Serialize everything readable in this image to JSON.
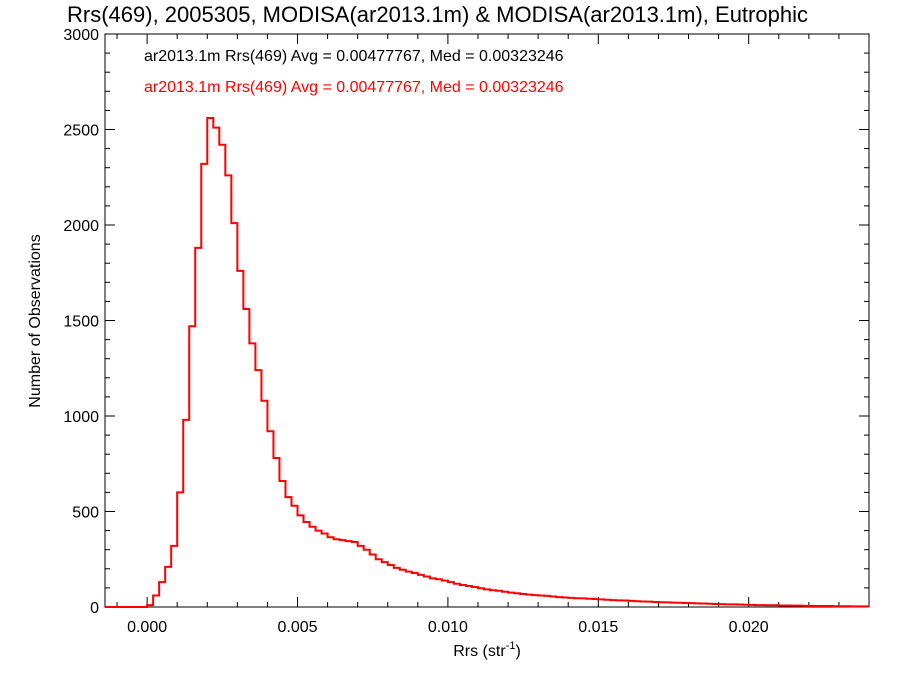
{
  "chart_data": {
    "type": "histogram",
    "title": "Rrs(469), 2005305, MODISA(ar2013.1m) & MODISA(ar2013.1m), Eutrophic",
    "xlabel": "Rrs (str",
    "xlabel_superscript": "-1",
    "xlabel_suffix": ")",
    "ylabel": "Number of Observations",
    "xlim": [
      -0.0014,
      0.024
    ],
    "ylim": [
      0,
      3000
    ],
    "xticks": [
      0.0,
      0.005,
      0.01,
      0.015,
      0.02
    ],
    "xtick_labels": [
      "0.000",
      "0.005",
      "0.010",
      "0.015",
      "0.020"
    ],
    "yticks": [
      0,
      500,
      1000,
      1500,
      2000,
      2500,
      3000
    ],
    "ytick_labels": [
      "0",
      "500",
      "1000",
      "1500",
      "2000",
      "2500",
      "3000"
    ],
    "grid": false,
    "legend_position": "top-left",
    "series": [
      {
        "name": "ar2013.1m Rrs(469) Avg = 0.00477767, Med = 0.00323246",
        "color": "#000000",
        "bins": [
          [
            -0.0014,
            0
          ],
          [
            0.0,
            10
          ],
          [
            0.0002,
            60
          ],
          [
            0.0004,
            130
          ],
          [
            0.0006,
            210
          ],
          [
            0.0008,
            320
          ],
          [
            0.001,
            600
          ],
          [
            0.0012,
            980
          ],
          [
            0.0014,
            1470
          ],
          [
            0.0016,
            1880
          ],
          [
            0.0018,
            2320
          ],
          [
            0.002,
            2560
          ],
          [
            0.0022,
            2510
          ],
          [
            0.0024,
            2420
          ],
          [
            0.0026,
            2260
          ],
          [
            0.0028,
            2010
          ],
          [
            0.003,
            1760
          ],
          [
            0.0032,
            1560
          ],
          [
            0.0034,
            1380
          ],
          [
            0.0036,
            1240
          ],
          [
            0.0038,
            1080
          ],
          [
            0.004,
            920
          ],
          [
            0.0042,
            780
          ],
          [
            0.0044,
            660
          ],
          [
            0.0046,
            575
          ],
          [
            0.0048,
            530
          ],
          [
            0.005,
            480
          ],
          [
            0.0052,
            445
          ],
          [
            0.0054,
            420
          ],
          [
            0.0056,
            400
          ],
          [
            0.0058,
            385
          ],
          [
            0.006,
            365
          ],
          [
            0.0062,
            355
          ],
          [
            0.0064,
            350
          ],
          [
            0.0066,
            345
          ],
          [
            0.0068,
            340
          ],
          [
            0.007,
            320
          ],
          [
            0.0072,
            300
          ],
          [
            0.0074,
            275
          ],
          [
            0.0076,
            250
          ],
          [
            0.0078,
            235
          ],
          [
            0.008,
            220
          ],
          [
            0.0082,
            205
          ],
          [
            0.0084,
            195
          ],
          [
            0.0086,
            185
          ],
          [
            0.0088,
            178
          ],
          [
            0.009,
            168
          ],
          [
            0.0092,
            160
          ],
          [
            0.0094,
            150
          ],
          [
            0.0096,
            145
          ],
          [
            0.0098,
            138
          ],
          [
            0.01,
            130
          ],
          [
            0.0102,
            122
          ],
          [
            0.0104,
            115
          ],
          [
            0.0106,
            110
          ],
          [
            0.0108,
            105
          ],
          [
            0.011,
            98
          ],
          [
            0.0112,
            92
          ],
          [
            0.0114,
            88
          ],
          [
            0.0116,
            85
          ],
          [
            0.0118,
            80
          ],
          [
            0.012,
            75
          ],
          [
            0.0122,
            72
          ],
          [
            0.0124,
            68
          ],
          [
            0.0126,
            65
          ],
          [
            0.0128,
            62
          ],
          [
            0.013,
            60
          ],
          [
            0.0132,
            58
          ],
          [
            0.0134,
            55
          ],
          [
            0.0136,
            52
          ],
          [
            0.0138,
            50
          ],
          [
            0.014,
            48
          ],
          [
            0.0142,
            46
          ],
          [
            0.0144,
            45
          ],
          [
            0.0146,
            43
          ],
          [
            0.0148,
            42
          ],
          [
            0.015,
            40
          ],
          [
            0.0152,
            38
          ],
          [
            0.0154,
            36
          ],
          [
            0.0156,
            35
          ],
          [
            0.0158,
            34
          ],
          [
            0.016,
            32
          ],
          [
            0.0162,
            30
          ],
          [
            0.0164,
            29
          ],
          [
            0.0166,
            28
          ],
          [
            0.0168,
            26
          ],
          [
            0.017,
            25
          ],
          [
            0.0172,
            24
          ],
          [
            0.0174,
            23
          ],
          [
            0.0176,
            22
          ],
          [
            0.0178,
            21
          ],
          [
            0.018,
            20
          ],
          [
            0.0182,
            19
          ],
          [
            0.0184,
            18
          ],
          [
            0.0186,
            17
          ],
          [
            0.0188,
            16
          ],
          [
            0.019,
            15
          ],
          [
            0.0192,
            14
          ],
          [
            0.0194,
            14
          ],
          [
            0.0196,
            13
          ],
          [
            0.0198,
            12
          ],
          [
            0.02,
            11
          ],
          [
            0.0202,
            10
          ],
          [
            0.0204,
            10
          ],
          [
            0.0206,
            9
          ],
          [
            0.0208,
            9
          ],
          [
            0.021,
            8
          ],
          [
            0.0212,
            8
          ],
          [
            0.0214,
            7
          ],
          [
            0.0216,
            7
          ],
          [
            0.0218,
            6
          ],
          [
            0.022,
            6
          ],
          [
            0.0222,
            5
          ],
          [
            0.0224,
            5
          ],
          [
            0.0226,
            5
          ],
          [
            0.0228,
            4
          ],
          [
            0.023,
            4
          ],
          [
            0.0232,
            4
          ],
          [
            0.0234,
            3
          ],
          [
            0.0236,
            3
          ],
          [
            0.0238,
            3
          ]
        ]
      },
      {
        "name": "ar2013.1m Rrs(469) Avg = 0.00477767, Med = 0.00323246",
        "color": "#ff0000",
        "same_as_series": 0
      }
    ]
  }
}
